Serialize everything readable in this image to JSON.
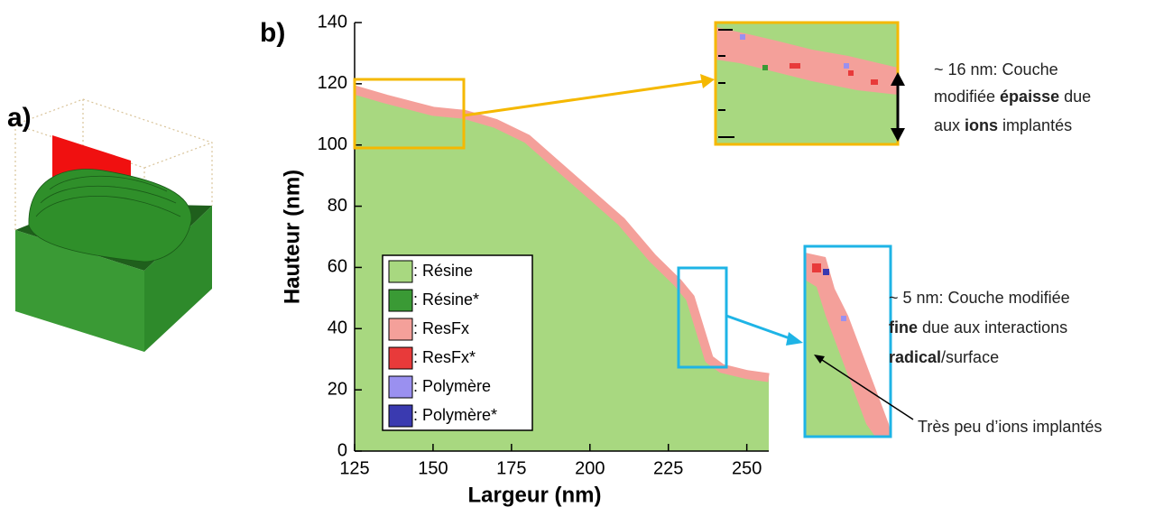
{
  "panel_labels": {
    "a": "a)",
    "b": "b)"
  },
  "chart_data": {
    "type": "area",
    "xlabel": "Largeur (nm)",
    "ylabel": "Hauteur (nm)",
    "x": [
      125,
      135,
      150,
      160,
      170,
      180,
      190,
      200,
      210,
      220,
      228,
      232,
      235,
      238,
      242,
      250,
      257
    ],
    "values": [
      118,
      115,
      111,
      110,
      107,
      102,
      93,
      84,
      75,
      63,
      55,
      50,
      40,
      30,
      27,
      25,
      24
    ],
    "xlim": [
      125,
      257
    ],
    "ylim": [
      0,
      140
    ],
    "xticks": [
      125,
      150,
      175,
      200,
      225,
      250
    ],
    "yticks": [
      0,
      20,
      40,
      60,
      80,
      100,
      120,
      140
    ],
    "legend": [
      {
        "name": ": Résine",
        "color": "#a8d880"
      },
      {
        "name": ": Résine*",
        "color": "#3a9a35"
      },
      {
        "name": ": ResFx",
        "color": "#f4a09a"
      },
      {
        "name": ": ResFx*",
        "color": "#e83a3a"
      },
      {
        "name": ": Polymère",
        "color": "#9a90f0"
      },
      {
        "name": ": Polymère*",
        "color": "#3a3ab0"
      }
    ],
    "annotations": {
      "thick": [
        [
          "~ 16 nm: Couche"
        ],
        [
          "modifiée ",
          "épaisse",
          " due"
        ],
        [
          "aux ",
          "ions",
          " implantés"
        ]
      ],
      "thin": [
        [
          "~ 5 nm: Couche modifiée"
        ],
        [
          "fine",
          " due aux interactions"
        ],
        [
          "radical",
          "/surface"
        ]
      ],
      "note": "Très peu d’ions implantés"
    }
  }
}
